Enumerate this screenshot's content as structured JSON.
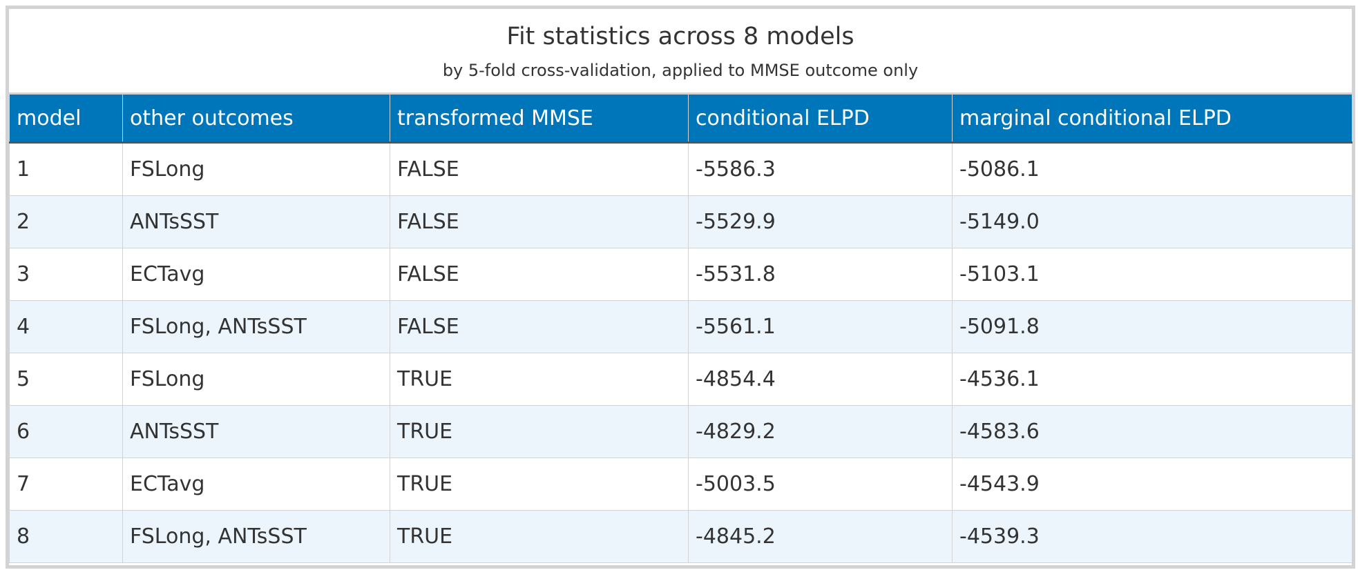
{
  "table": {
    "title": "Fit statistics across 8 models",
    "subtitle": "by 5-fold cross-validation, applied to MMSE outcome only",
    "columns": [
      "model",
      "other outcomes",
      "transformed MMSE",
      "conditional ELPD",
      "marginal conditional ELPD"
    ],
    "rows": [
      [
        "1",
        "FSLong",
        "FALSE",
        "-5586.3",
        "-5086.1"
      ],
      [
        "2",
        "ANTsSST",
        "FALSE",
        "-5529.9",
        "-5149.0"
      ],
      [
        "3",
        "ECTavg",
        "FALSE",
        "-5531.8",
        "-5103.1"
      ],
      [
        "4",
        "FSLong, ANTsSST",
        "FALSE",
        "-5561.1",
        "-5091.8"
      ],
      [
        "5",
        "FSLong",
        "TRUE",
        "-4854.4",
        "-4536.1"
      ],
      [
        "6",
        "ANTsSST",
        "TRUE",
        "-4829.2",
        "-4583.6"
      ],
      [
        "7",
        "ECTavg",
        "TRUE",
        "-5003.5",
        "-4543.9"
      ],
      [
        "8",
        "FSLong, ANTsSST",
        "TRUE",
        "-4845.2",
        "-4539.3"
      ]
    ],
    "colors": {
      "header_background": "#0076BA",
      "header_text": "#ffffff",
      "stripe": "#ecf5fb",
      "border": "#d3d3d3"
    }
  }
}
